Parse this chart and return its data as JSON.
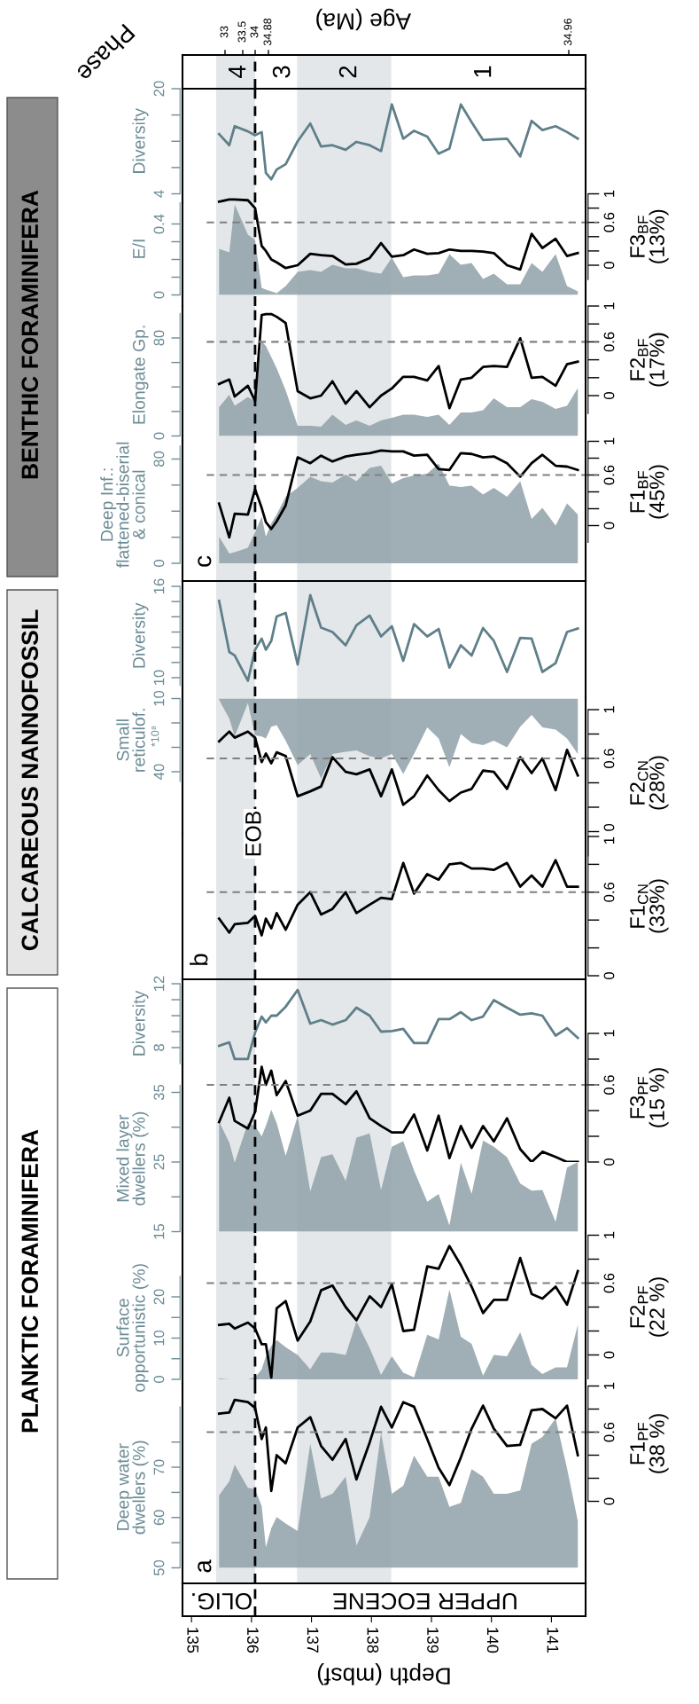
{
  "chart_data": [
    {
      "type": "line",
      "title": "BENTHIC FORAMINIFERA",
      "ylabel": "Diversity",
      "x2label": "Age (Ma)",
      "x": [
        135.46,
        135.63,
        135.72,
        135.94,
        136.06,
        136.17,
        136.24,
        136.33,
        136.42,
        136.57,
        136.77,
        136.98,
        137.16,
        137.35,
        137.57,
        137.75,
        137.97,
        138.16,
        138.34,
        138.53,
        138.71,
        138.93,
        139.12,
        139.3,
        139.49,
        139.67,
        139.86,
        140.04,
        140.26,
        140.48,
        140.67,
        140.85,
        141.07,
        141.26,
        141.44
      ],
      "xlim": [
        134.85,
        141.57
      ],
      "ylim": [
        4,
        20
      ],
      "yticks": [
        4,
        {
          "value": 8,
          "label": null
        },
        {
          "value": 12,
          "label": null
        },
        {
          "value": 16,
          "label": null
        },
        20
      ],
      "tick_labels": "y",
      "series": [
        {
          "color": "#5f7f89",
          "values": [
            13.1,
            11.4,
            14.3,
            13.5,
            12.9,
            13.4,
            7.2,
            6.2,
            7.7,
            8.5,
            12.0,
            14.7,
            11.2,
            11.4,
            10.7,
            11.9,
            11.4,
            10.5,
            17.6,
            12.4,
            13.6,
            12.7,
            10.1,
            10.9,
            17.6,
            14.9,
            12.2,
            12.3,
            12.4,
            9.7,
            15.1,
            13.7,
            14.3,
            13.4,
            12.4
          ]
        }
      ],
      "ref_lines": [
        {
          "axis": "x",
          "value": 136.06,
          "line_style": "dashed",
          "color": "#000000"
        }
      ],
      "bands": [
        {
          "axis": "x",
          "from": 135.41,
          "to": 136.06,
          "color": "#e3e7ea"
        },
        {
          "axis": "x",
          "from": 136.76,
          "to": 138.33,
          "color": "#e3e7ea"
        }
      ],
      "annotations": [
        "Phase",
        "4",
        "3",
        "2",
        "1",
        "33",
        "33.5",
        "34",
        "34.88",
        "34.96"
      ]
    },
    {
      "type": "area",
      "ylabel": "E/I",
      "y2label": "F3$_{BF}$\n(13%)",
      "x": [
        135.46,
        135.63,
        135.72,
        135.94,
        136.06,
        136.17,
        136.24,
        136.33,
        136.42,
        136.57,
        136.77,
        136.98,
        137.16,
        137.35,
        137.57,
        137.75,
        137.97,
        138.16,
        138.34,
        138.53,
        138.71,
        138.93,
        139.12,
        139.3,
        139.49,
        139.67,
        139.86,
        140.04,
        140.26,
        140.48,
        140.67,
        140.85,
        141.07,
        141.26,
        141.44
      ],
      "xlim": [
        134.85,
        141.57
      ],
      "ylim": [
        0,
        0.52
      ],
      "yticks": [
        0,
        {
          "value": 0.1,
          "label": null
        },
        {
          "value": 0.2,
          "label": null
        },
        {
          "value": 0.3,
          "label": null
        },
        0.4
      ],
      "y2lim": [
        -0.2,
        1
      ],
      "y2ticks": [
        0,
        {
          "value": 0.2,
          "label": null
        },
        {
          "value": 0.4,
          "label": null
        },
        0.6,
        {
          "value": 0.8,
          "label": null
        },
        1
      ],
      "tick_labels": "y",
      "series": [
        {
          "color": "#8fa1a8",
          "values": [
            0.26,
            0.24,
            0.51,
            0.34,
            0.31,
            0.04,
            0.03,
            0.02,
            0.01,
            0.05,
            0.13,
            0.14,
            0.13,
            0.17,
            0.15,
            0.15,
            0.13,
            0.12,
            0.21,
            0.1,
            0.11,
            0.11,
            0.12,
            0.23,
            0.17,
            0.18,
            0.09,
            0.12,
            0.06,
            0.06,
            0.18,
            0.13,
            0.23,
            0.05,
            0.02
          ]
        },
        {
          "type": "line",
          "axis": "y2",
          "color": "#000000",
          "values": [
            0.89,
            0.92,
            0.92,
            0.91,
            0.8,
            0.27,
            0.2,
            0.08,
            0.04,
            -0.04,
            0,
            0.16,
            0.14,
            0.13,
            0.01,
            0.02,
            0.1,
            0.31,
            0.12,
            0.14,
            0.22,
            0.16,
            0.17,
            0.22,
            0.2,
            0.2,
            0.19,
            0.17,
            0,
            -0.06,
            0.44,
            0.24,
            0.37,
            0.13,
            0.17
          ]
        }
      ],
      "ref_lines": [
        {
          "axis": "x",
          "value": 136.06,
          "line_style": "dashed",
          "color": "#000000"
        },
        {
          "axis": "y2",
          "value": 0.6,
          "line_style": "dashed",
          "color": "#808080"
        }
      ],
      "bands": [
        {
          "axis": "x",
          "from": 135.41,
          "to": 136.06,
          "color": "#e3e7ea"
        },
        {
          "axis": "x",
          "from": 136.76,
          "to": 138.33,
          "color": "#e3e7ea"
        }
      ]
    },
    {
      "type": "area",
      "ylabel": "Elongate Gp.",
      "y2label": "F2$_{BF}$\n(17%)",
      "x": [
        135.46,
        135.63,
        135.72,
        135.94,
        136.06,
        136.17,
        136.24,
        136.33,
        136.42,
        136.57,
        136.77,
        136.98,
        137.16,
        137.35,
        137.57,
        137.75,
        137.97,
        138.16,
        138.34,
        138.53,
        138.71,
        138.93,
        139.12,
        139.3,
        139.49,
        139.67,
        139.86,
        140.04,
        140.26,
        140.48,
        140.67,
        140.85,
        141.07,
        141.26,
        141.44
      ],
      "xlim": [
        134.85,
        141.57
      ],
      "ylim": [
        0,
        100
      ],
      "yticks": [
        0,
        {
          "value": 20,
          "label": null
        },
        {
          "value": 40,
          "label": null
        },
        {
          "value": 60,
          "label": null
        },
        80
      ],
      "y2lim": [
        -0.2,
        1
      ],
      "y2ticks": [
        0,
        {
          "value": 0.2,
          "label": null
        },
        {
          "value": 0.4,
          "label": null
        },
        0.6,
        {
          "value": 0.8,
          "label": null
        },
        1
      ],
      "tick_labels": "y",
      "series": [
        {
          "color": "#8fa1a8",
          "values": [
            23.5,
            33.7,
            24.6,
            31.9,
            28.2,
            77.1,
            73.5,
            64.4,
            55.3,
            37.3,
            8.3,
            8.3,
            7.6,
            17.4,
            9.1,
            12.7,
            8.3,
            12.7,
            14.8,
            17.4,
            17.4,
            15.6,
            17.4,
            9.1,
            19.2,
            19.2,
            21.0,
            30.8,
            23.5,
            23.5,
            30.0,
            27.9,
            22.1,
            24.6,
            39.1
          ]
        },
        {
          "type": "line",
          "axis": "y2",
          "color": "#000000",
          "values": [
            0.13,
            0.18,
            -0.01,
            0.11,
            -0.06,
            0.9,
            0.91,
            0.91,
            0.88,
            0.81,
            0.05,
            -0.03,
            0,
            0.16,
            -0.09,
            0.05,
            -0.13,
            0,
            0.08,
            0.21,
            0.21,
            0.17,
            0.33,
            -0.14,
            0.18,
            0.2,
            0.32,
            0.33,
            0.32,
            0.64,
            0.2,
            0.21,
            0.11,
            0.35,
            0.38
          ]
        }
      ],
      "ref_lines": [
        {
          "axis": "x",
          "value": 136.06,
          "line_style": "dashed",
          "color": "#000000"
        },
        {
          "axis": "y2",
          "value": 0.6,
          "line_style": "dashed",
          "color": "#808080"
        }
      ],
      "bands": [
        {
          "axis": "x",
          "from": 135.41,
          "to": 136.06,
          "color": "#e3e7ea"
        },
        {
          "axis": "x",
          "from": 136.76,
          "to": 138.33,
          "color": "#e3e7ea"
        }
      ]
    },
    {
      "type": "area",
      "ylabel": "Deep Inf.:\nflattened-biserial\n& conical",
      "y2label": "F1$_{BF}$\n(45%)",
      "x": [
        135.46,
        135.63,
        135.72,
        135.94,
        136.06,
        136.17,
        136.24,
        136.33,
        136.42,
        136.57,
        136.77,
        136.98,
        137.16,
        137.35,
        137.57,
        137.75,
        137.97,
        138.16,
        138.34,
        138.53,
        138.71,
        138.93,
        139.12,
        139.3,
        139.49,
        139.67,
        139.86,
        140.04,
        140.26,
        140.48,
        140.67,
        140.85,
        141.07,
        141.26,
        141.44
      ],
      "xlim": [
        134.85,
        141.57
      ],
      "ylim": [
        0,
        90
      ],
      "yticks": [
        0,
        {
          "value": 20,
          "label": null
        },
        {
          "value": 40,
          "label": null
        },
        {
          "value": 60,
          "label": null
        },
        80
      ],
      "y2lim": [
        -0.2,
        1
      ],
      "y2ticks": [
        0,
        {
          "value": 0.2,
          "label": null
        },
        {
          "value": 0.4,
          "label": null
        },
        0.6,
        {
          "value": 0.8,
          "label": null
        },
        1
      ],
      "tick_labels": "y",
      "series": [
        {
          "color": "#8fa1a8",
          "values": [
            20.4,
            7.5,
            8.5,
            11.9,
            23.8,
            35.7,
            20.4,
            30.6,
            37.4,
            51.1,
            57.9,
            66.4,
            63.0,
            62.0,
            68.1,
            63.0,
            73.2,
            74.9,
            61.3,
            65.4,
            67.4,
            68.8,
            76.6,
            59.6,
            58.6,
            59.6,
            52.8,
            57.9,
            51.1,
            63.0,
            34.0,
            42.6,
            28.9,
            45.9,
            37.4
          ]
        },
        {
          "type": "line",
          "axis": "y2",
          "color": "#000000",
          "values": [
            0.26,
            -0.14,
            0.14,
            0.13,
            0.43,
            0.21,
            0.04,
            -0.04,
            0.05,
            0.24,
            0.81,
            0.74,
            0.83,
            0.76,
            0.82,
            0.84,
            0.86,
            0.89,
            0.88,
            0.88,
            0.83,
            0.84,
            0.67,
            0.66,
            0.86,
            0.85,
            0.81,
            0.82,
            0.74,
            0.58,
            0.74,
            0.84,
            0.71,
            0.7,
            0.66
          ]
        }
      ],
      "ref_lines": [
        {
          "axis": "x",
          "value": 136.06,
          "line_style": "dashed",
          "color": "#000000"
        },
        {
          "axis": "y2",
          "value": 0.6,
          "line_style": "dashed",
          "color": "#808080"
        }
      ],
      "bands": [
        {
          "axis": "x",
          "from": 135.41,
          "to": 136.06,
          "color": "#e3e7ea"
        },
        {
          "axis": "x",
          "from": 136.76,
          "to": 138.33,
          "color": "#e3e7ea"
        }
      ],
      "annotations": [
        "c"
      ]
    },
    {
      "type": "line",
      "title": "CALCAREOUS NANNOFOSSIL",
      "ylabel": "Diversity",
      "x": [
        135.46,
        135.63,
        135.72,
        135.94,
        136.06,
        136.17,
        136.24,
        136.33,
        136.42,
        136.57,
        136.77,
        136.98,
        137.16,
        137.35,
        137.57,
        137.75,
        137.97,
        138.16,
        138.34,
        138.53,
        138.71,
        138.93,
        139.12,
        139.3,
        139.49,
        139.67,
        139.86,
        140.04,
        140.26,
        140.48,
        140.67,
        140.85,
        141.07,
        141.26,
        141.44
      ],
      "xlim": [
        134.85,
        141.57
      ],
      "ylim": [
        9.5,
        16
      ],
      "yticks": [
        10,
        {
          "value": 11,
          "label": null
        },
        {
          "value": 12,
          "label": null
        },
        {
          "value": 13,
          "label": null
        },
        {
          "value": 14,
          "label": null
        },
        {
          "value": 15,
          "label": null
        },
        16
      ],
      "tick_labels": "y",
      "series": [
        {
          "color": "#5f7f89",
          "values": [
            15.04,
            11.69,
            11.46,
            9.8,
            11.84,
            12.57,
            11.84,
            12.42,
            14.02,
            14.25,
            10.87,
            15.42,
            13.29,
            13.0,
            12.13,
            13.44,
            14.08,
            12.71,
            13.38,
            11.11,
            13.52,
            12.71,
            13.2,
            10.67,
            12.13,
            11.46,
            13.26,
            12.42,
            10.38,
            12.62,
            12.57,
            10.38,
            10.96,
            13.0,
            13.23
          ]
        }
      ],
      "ref_lines": [
        {
          "axis": "x",
          "value": 136.06,
          "line_style": "dashed",
          "color": "#000000"
        }
      ],
      "bands": [
        {
          "axis": "x",
          "from": 135.41,
          "to": 136.06,
          "color": "#e3e7ea"
        },
        {
          "axis": "x",
          "from": 136.76,
          "to": 138.33,
          "color": "#e3e7ea"
        }
      ]
    },
    {
      "type": "area",
      "ylabel": "Small\nreticulof.",
      "y2label": "F2$_{CN}$\n(28%)",
      "x": [
        135.46,
        135.63,
        135.72,
        135.94,
        136.06,
        136.17,
        136.24,
        136.33,
        136.42,
        136.57,
        136.77,
        136.98,
        137.16,
        137.35,
        137.57,
        137.75,
        137.97,
        138.16,
        138.34,
        138.53,
        138.71,
        138.93,
        139.12,
        139.3,
        139.49,
        139.67,
        139.86,
        140.04,
        140.26,
        140.48,
        140.67,
        140.85,
        141.07,
        141.26,
        141.44
      ],
      "xlim": [
        134.85,
        141.57
      ],
      "ylim": [
        44,
        10
      ],
      "yticks": [
        10,
        {
          "value": 20,
          "label": null
        },
        {
          "value": 30,
          "label": null
        },
        40
      ],
      "y2lim": [
        -0.2,
        1
      ],
      "y2ticks": [
        0,
        {
          "value": 0.2,
          "label": null
        },
        {
          "value": 0.4,
          "label": null
        },
        0.6,
        {
          "value": 0.8,
          "label": null
        },
        1
      ],
      "tick_labels": "y",
      "series": [
        {
          "color": "#8fa1a8",
          "values": [
            10.5,
            18.2,
            25.5,
            11.8,
            25.1,
            25.5,
            26.4,
            21.5,
            20.9,
            27.3,
            37.3,
            32.7,
            42.7,
            32.7,
            31.8,
            31.3,
            33.6,
            34.5,
            32.7,
            40.9,
            32.7,
            21.8,
            26.4,
            38.2,
            24.5,
            28.2,
            29.1,
            27.3,
            30.0,
            21.5,
            16.7,
            21.8,
            22.7,
            26.4,
            32.7
          ]
        },
        {
          "type": "line",
          "axis": "y2",
          "color": "#000000",
          "values": [
            0.74,
            0.82,
            0.77,
            0.82,
            0.77,
            0.57,
            0.64,
            0.56,
            0.65,
            0.62,
            0.29,
            0.33,
            0.37,
            0.61,
            0.49,
            0.47,
            0.51,
            0.29,
            0.51,
            0.22,
            0.29,
            0.46,
            0.34,
            0.25,
            0.32,
            0.35,
            0.5,
            0.49,
            0.35,
            0.61,
            0.48,
            0.6,
            0.34,
            0.67,
            0.46
          ]
        }
      ],
      "ref_lines": [
        {
          "axis": "x",
          "value": 136.06,
          "line_style": "dashed",
          "color": "#000000"
        },
        {
          "axis": "y2",
          "value": 0.6,
          "line_style": "dashed",
          "color": "#808080"
        }
      ],
      "bands": [
        {
          "axis": "x",
          "from": 135.41,
          "to": 136.06,
          "color": "#e3e7ea"
        },
        {
          "axis": "x",
          "from": 136.76,
          "to": 138.33,
          "color": "#e3e7ea"
        }
      ],
      "annotations": [
        "*10⁸"
      ]
    },
    {
      "type": "line",
      "y2label": "F1$_{CN}$\n(33%)",
      "x": [
        135.46,
        135.63,
        135.72,
        135.94,
        136.06,
        136.17,
        136.24,
        136.33,
        136.42,
        136.57,
        136.77,
        136.98,
        137.16,
        137.35,
        137.57,
        137.75,
        137.97,
        138.16,
        138.34,
        138.53,
        138.71,
        138.93,
        139.12,
        139.3,
        139.49,
        139.67,
        139.86,
        140.04,
        140.26,
        140.48,
        140.67,
        140.85,
        141.07,
        141.26,
        141.44
      ],
      "xlim": [
        134.85,
        141.57
      ],
      "y2lim": [
        0,
        1
      ],
      "y2ticks": [
        0,
        {
          "value": 0.2,
          "label": null
        },
        {
          "value": 0.4,
          "label": null
        },
        0.6,
        {
          "value": 0.8,
          "label": null
        },
        1
      ],
      "tick_labels": "y",
      "series": [
        {
          "axis": "y2",
          "color": "#000000",
          "values": [
            0.41,
            0.31,
            0.37,
            0.38,
            0.43,
            0.29,
            0.41,
            0.34,
            0.45,
            0.33,
            0.51,
            0.6,
            0.44,
            0.48,
            0.6,
            0.45,
            0.51,
            0.56,
            0.55,
            0.81,
            0.59,
            0.73,
            0.69,
            0.8,
            0.81,
            0.77,
            0.77,
            0.76,
            0.81,
            0.64,
            0.72,
            0.64,
            0.83,
            0.64,
            0.64
          ]
        }
      ],
      "ref_lines": [
        {
          "axis": "x",
          "value": 136.06,
          "line_style": "dashed",
          "color": "#000000",
          "label": "EOB"
        },
        {
          "axis": "y2",
          "value": 0.6,
          "line_style": "dashed",
          "color": "#808080"
        }
      ],
      "bands": [
        {
          "axis": "x",
          "from": 135.41,
          "to": 136.06,
          "color": "#e3e7ea"
        },
        {
          "axis": "x",
          "from": 136.76,
          "to": 138.33,
          "color": "#e3e7ea"
        }
      ],
      "annotations": [
        "b"
      ]
    },
    {
      "type": "line",
      "title": "PLANKTIC FORAMINIFERA",
      "ylabel": "Diversity",
      "x": [
        135.46,
        135.63,
        135.72,
        135.94,
        136.06,
        136.17,
        136.24,
        136.33,
        136.42,
        136.57,
        136.77,
        136.98,
        137.16,
        137.35,
        137.57,
        137.75,
        137.97,
        138.16,
        138.34,
        138.53,
        138.71,
        138.93,
        139.12,
        139.3,
        139.49,
        139.67,
        139.86,
        140.04,
        140.26,
        140.48,
        140.67,
        140.85,
        141.07,
        141.26,
        141.44
      ],
      "xlim": [
        134.85,
        141.57
      ],
      "ylim": [
        7,
        12
      ],
      "yticks": [
        8,
        {
          "value": 9,
          "label": null
        },
        {
          "value": 10,
          "label": null
        },
        {
          "value": 11,
          "label": null
        },
        12
      ],
      "tick_labels": "y",
      "series": [
        {
          "color": "#5f7f89",
          "values": [
            8.11,
            8.33,
            7.28,
            7.28,
            8.94,
            9.94,
            9.58,
            10.0,
            10.0,
            10.56,
            11.61,
            9.5,
            9.72,
            9.44,
            9.72,
            10.5,
            10.0,
            9.0,
            9.03,
            9.17,
            8.28,
            8.28,
            9.78,
            9.78,
            10.22,
            9.72,
            9.94,
            10.97,
            10.5,
            10.06,
            10.14,
            10.0,
            8.75,
            9.22,
            8.61
          ]
        }
      ],
      "ref_lines": [
        {
          "axis": "x",
          "value": 136.06,
          "line_style": "dashed",
          "color": "#000000"
        }
      ],
      "bands": [
        {
          "axis": "x",
          "from": 135.41,
          "to": 136.06,
          "color": "#e3e7ea"
        },
        {
          "axis": "x",
          "from": 136.76,
          "to": 138.33,
          "color": "#e3e7ea"
        }
      ]
    },
    {
      "type": "area",
      "ylabel": "Mixed layer\ndwellers (%)",
      "y2label": "F3$_{PF}$\n(15 %)",
      "x": [
        135.46,
        135.63,
        135.72,
        135.94,
        136.06,
        136.17,
        136.24,
        136.33,
        136.42,
        136.57,
        136.77,
        136.98,
        137.16,
        137.35,
        137.57,
        137.75,
        137.97,
        138.16,
        138.34,
        138.53,
        138.71,
        138.93,
        139.12,
        139.3,
        139.49,
        139.67,
        139.86,
        140.04,
        140.26,
        140.48,
        140.67,
        140.85,
        141.07,
        141.26,
        141.44
      ],
      "xlim": [
        134.85,
        141.57
      ],
      "ylim": [
        15,
        36
      ],
      "yticks": [
        15,
        {
          "value": 20,
          "label": null
        },
        25,
        {
          "value": 30,
          "label": null
        },
        35
      ],
      "y2lim": [
        0,
        1
      ],
      "y2ticks": [
        0,
        {
          "value": 0.2,
          "label": null
        },
        {
          "value": 0.4,
          "label": null
        },
        0.6,
        {
          "value": 0.8,
          "label": null
        },
        1
      ],
      "tick_labels": "y",
      "series": [
        {
          "color": "#8fa1a8",
          "values": [
            30.8,
            27.8,
            24.9,
            30.6,
            30.2,
            28.7,
            30.2,
            32.5,
            30.6,
            25.9,
            31.6,
            20.8,
            25.7,
            26.1,
            22.3,
            28.5,
            29.1,
            21.0,
            27.2,
            28.0,
            23.8,
            19.3,
            20.4,
            15.9,
            24.9,
            20.4,
            28.1,
            27.2,
            25.7,
            21.9,
            20.9,
            21.0,
            16.4,
            24.2,
            25.0
          ]
        },
        {
          "type": "line",
          "axis": "y2",
          "color": "#000000",
          "values": [
            0.31,
            0.5,
            0.32,
            0.26,
            0.39,
            0.74,
            0.6,
            0.71,
            0.52,
            0.63,
            0.36,
            0.4,
            0.53,
            0.53,
            0.45,
            0.55,
            0.34,
            0.28,
            0.23,
            0.23,
            0.37,
            0.09,
            0.36,
            0.03,
            0.28,
            0.11,
            0.28,
            0.16,
            0.34,
            0.1,
            0,
            0.08,
            0.04,
            0,
            0
          ]
        }
      ],
      "ref_lines": [
        {
          "axis": "x",
          "value": 136.06,
          "line_style": "dashed",
          "color": "#000000"
        },
        {
          "axis": "y2",
          "value": 0.6,
          "line_style": "dashed",
          "color": "#808080"
        }
      ],
      "bands": [
        {
          "axis": "x",
          "from": 135.41,
          "to": 136.06,
          "color": "#e3e7ea"
        },
        {
          "axis": "x",
          "from": 136.76,
          "to": 138.33,
          "color": "#e3e7ea"
        }
      ]
    },
    {
      "type": "area",
      "ylabel": "Surface\nopportunistic (%)",
      "y2label": "F2$_{PF}$\n(22 %)",
      "x": [
        135.46,
        135.63,
        135.72,
        135.94,
        136.06,
        136.17,
        136.24,
        136.33,
        136.42,
        136.57,
        136.77,
        136.98,
        137.16,
        137.35,
        137.57,
        137.75,
        137.97,
        138.16,
        138.34,
        138.53,
        138.71,
        138.93,
        139.12,
        139.3,
        139.49,
        139.67,
        139.86,
        140.04,
        140.26,
        140.48,
        140.67,
        140.85,
        141.07,
        141.26,
        141.44
      ],
      "xlim": [
        134.85,
        141.57
      ],
      "ylim": [
        0,
        25
      ],
      "yticks": [
        0,
        {
          "value": 5,
          "label": null
        },
        10,
        {
          "value": 15,
          "label": null
        },
        20
      ],
      "y2lim": [
        -0.2,
        1
      ],
      "y2ticks": [
        0,
        {
          "value": 0.2,
          "label": null
        },
        {
          "value": 0.4,
          "label": null
        },
        0.6,
        {
          "value": 0.8,
          "label": null
        },
        1
      ],
      "tick_labels": "y",
      "series": [
        {
          "color": "#8fa1a8",
          "values": [
            0.2,
            0,
            0,
            0,
            0.5,
            2.4,
            5.6,
            8.1,
            9.5,
            7.8,
            5.9,
            2.4,
            6.5,
            6.5,
            5.9,
            14.1,
            7.6,
            1.1,
            5.6,
            1.6,
            0.5,
            10.8,
            9.7,
            21.8,
            10.3,
            8.6,
            0.9,
            5.9,
            5.6,
            11.4,
            3.5,
            1.3,
            2.9,
            2.9,
            13.2
          ]
        },
        {
          "type": "line",
          "axis": "y2",
          "color": "#000000",
          "values": [
            0.25,
            0.26,
            0.22,
            0.27,
            0.22,
            0.09,
            0.09,
            -0.19,
            0.39,
            0.45,
            0.12,
            0.28,
            0.54,
            0.58,
            0.4,
            0.29,
            0.49,
            0.4,
            0.59,
            0.2,
            0.21,
            0.74,
            0.72,
            0.91,
            0.75,
            0.57,
            0.35,
            0.46,
            0.46,
            0.81,
            0.51,
            0.47,
            0.57,
            0.42,
            0.7
          ]
        }
      ],
      "ref_lines": [
        {
          "axis": "x",
          "value": 136.06,
          "line_style": "dashed",
          "color": "#000000"
        },
        {
          "axis": "y2",
          "value": 0.6,
          "line_style": "dashed",
          "color": "#808080"
        }
      ],
      "bands": [
        {
          "axis": "x",
          "from": 135.41,
          "to": 136.06,
          "color": "#e3e7ea"
        },
        {
          "axis": "x",
          "from": 136.76,
          "to": 138.33,
          "color": "#e3e7ea"
        }
      ]
    },
    {
      "type": "area",
      "ylabel": "Deep water\ndwellers (%)",
      "y2label": "F1$_{PF}$\n(38 %)",
      "xlabel": "Depth (mbsf)",
      "x": [
        135.46,
        135.63,
        135.72,
        135.94,
        136.06,
        136.17,
        136.24,
        136.33,
        136.42,
        136.57,
        136.77,
        136.98,
        137.16,
        137.35,
        137.57,
        137.75,
        137.97,
        138.16,
        138.34,
        138.53,
        138.71,
        138.93,
        139.12,
        139.3,
        139.49,
        139.67,
        139.86,
        140.04,
        140.26,
        140.48,
        140.67,
        140.85,
        141.07,
        141.26,
        141.44
      ],
      "xlim": [
        134.85,
        141.57
      ],
      "xticks": [
        135,
        136,
        137,
        138,
        139,
        140,
        141
      ],
      "ylim": [
        50,
        82
      ],
      "yticks": [
        50,
        {
          "value": 55,
          "label": null
        },
        60,
        {
          "value": 65,
          "label": null
        },
        70,
        {
          "value": 75,
          "label": null
        }
      ],
      "y2lim": [
        0,
        1
      ],
      "y2ticks": [
        0,
        {
          "value": 0.2,
          "label": null
        },
        {
          "value": 0.4,
          "label": null
        },
        0.6,
        {
          "value": 0.8,
          "label": null
        },
        1
      ],
      "series": [
        {
          "color": "#8fa1a8",
          "values": [
            64.4,
            67.2,
            70.5,
            65.9,
            65.6,
            62.3,
            54.1,
            57.9,
            60.1,
            58.8,
            57.3,
            74.7,
            63.8,
            64.7,
            68.1,
            54.4,
            60.1,
            76.9,
            64.7,
            66.3,
            72.3,
            68.1,
            68.1,
            62.1,
            62.9,
            69.6,
            68.1,
            64.7,
            64.7,
            65.4,
            74.7,
            76.0,
            79.7,
            69.8,
            59.3
          ]
        },
        {
          "type": "line",
          "axis": "y2",
          "color": "#000000",
          "values": [
            0.76,
            0.77,
            0.88,
            0.86,
            0.81,
            0.54,
            0.64,
            0.09,
            0.4,
            0.33,
            0.64,
            0.73,
            0.48,
            0.36,
            0.54,
            0.19,
            0.51,
            0.82,
            0.64,
            0.86,
            0.82,
            0.54,
            0.29,
            0.14,
            0.38,
            0.63,
            0.83,
            0.63,
            0.48,
            0.49,
            0.79,
            0.8,
            0.72,
            0.83,
            0.4
          ]
        }
      ],
      "ref_lines": [
        {
          "axis": "x",
          "value": 136.06,
          "line_style": "dashed",
          "color": "#000000"
        },
        {
          "axis": "y2",
          "value": 0.6,
          "line_style": "dashed",
          "color": "#808080"
        }
      ],
      "bands": [
        {
          "axis": "x",
          "from": 135.41,
          "to": 136.06,
          "color": "#e3e7ea"
        },
        {
          "axis": "x",
          "from": 136.76,
          "to": 138.33,
          "color": "#e3e7ea"
        }
      ],
      "annotations": [
        "a",
        "OLIG.",
        "UPPER EOCENE"
      ]
    }
  ]
}
